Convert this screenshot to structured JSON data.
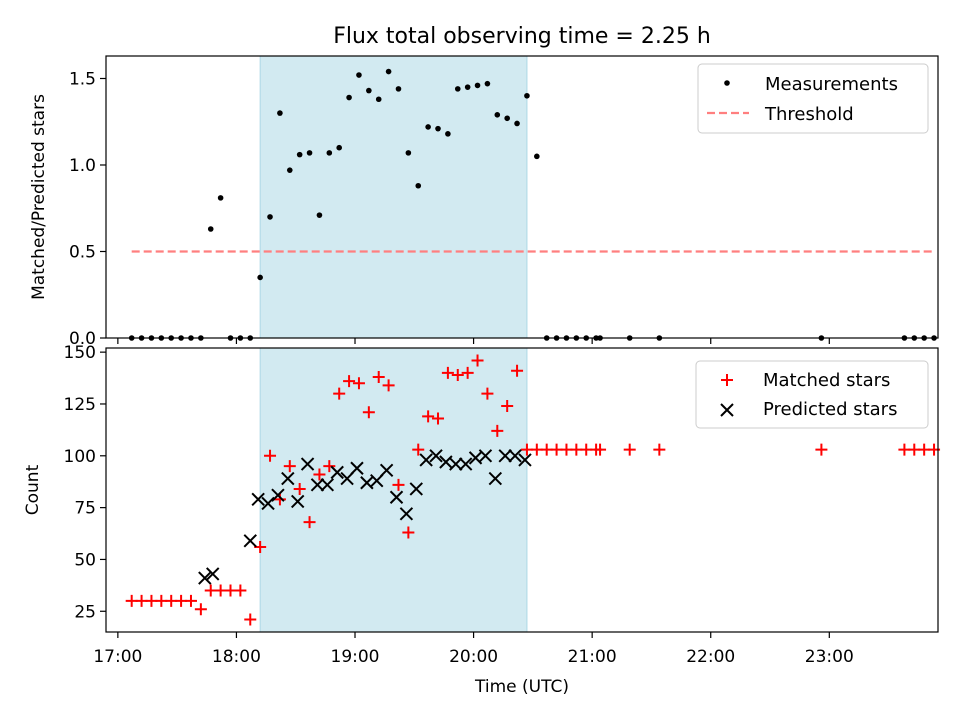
{
  "figure": {
    "title": "Flux total observing time = 2.25 h"
  },
  "chart_data": [
    {
      "type": "scatter",
      "title": "Flux total observing time = 2.25 h",
      "xlabel": "",
      "ylabel": "Matched/Predicted stars",
      "xlim": [
        "16:54",
        "23:55"
      ],
      "ylim": [
        0,
        1.63
      ],
      "yticks": [
        "0.0",
        "0.5",
        "1.0",
        "1.5"
      ],
      "grid": false,
      "legend": "top-right",
      "shaded_interval": [
        "18:12",
        "20:27"
      ],
      "series": [
        {
          "name": "Measurements",
          "marker": "dot",
          "color": "#000000",
          "points": [
            [
              "17:07",
              0
            ],
            [
              "17:12",
              0
            ],
            [
              "17:17",
              0
            ],
            [
              "17:22",
              0
            ],
            [
              "17:27",
              0
            ],
            [
              "17:32",
              0
            ],
            [
              "17:37",
              0
            ],
            [
              "17:42",
              0
            ],
            [
              "17:47",
              0.63
            ],
            [
              "17:52",
              0.81
            ],
            [
              "17:57",
              0
            ],
            [
              "18:02",
              0
            ],
            [
              "18:07",
              0
            ],
            [
              "18:12",
              0.35
            ],
            [
              "18:17",
              0.7
            ],
            [
              "18:22",
              1.3
            ],
            [
              "18:27",
              0.97
            ],
            [
              "18:32",
              1.06
            ],
            [
              "18:37",
              1.07
            ],
            [
              "18:42",
              0.71
            ],
            [
              "18:47",
              1.07
            ],
            [
              "18:52",
              1.1
            ],
            [
              "18:57",
              1.39
            ],
            [
              "19:02",
              1.52
            ],
            [
              "19:07",
              1.43
            ],
            [
              "19:12",
              1.38
            ],
            [
              "19:17",
              1.54
            ],
            [
              "19:22",
              1.44
            ],
            [
              "19:27",
              1.07
            ],
            [
              "19:32",
              0.88
            ],
            [
              "19:37",
              1.22
            ],
            [
              "19:42",
              1.21
            ],
            [
              "19:47",
              1.18
            ],
            [
              "19:52",
              1.44
            ],
            [
              "19:57",
              1.45
            ],
            [
              "20:02",
              1.46
            ],
            [
              "20:07",
              1.47
            ],
            [
              "20:12",
              1.29
            ],
            [
              "20:17",
              1.27
            ],
            [
              "20:22",
              1.24
            ],
            [
              "20:27",
              1.4
            ],
            [
              "20:32",
              1.05
            ],
            [
              "20:37",
              0
            ],
            [
              "20:42",
              0
            ],
            [
              "20:47",
              0
            ],
            [
              "20:52",
              0
            ],
            [
              "20:57",
              0
            ],
            [
              "21:02",
              0
            ],
            [
              "21:04",
              0
            ],
            [
              "21:19",
              0
            ],
            [
              "21:34",
              0
            ],
            [
              "22:56",
              0
            ],
            [
              "23:38",
              0
            ],
            [
              "23:43",
              0
            ],
            [
              "23:48",
              0
            ],
            [
              "23:53",
              0
            ]
          ]
        },
        {
          "name": "Threshold",
          "marker": "dashed-line",
          "color": "#ff7f7f",
          "points": [
            [
              "17:07",
              0.5
            ],
            [
              "23:53",
              0.5
            ]
          ]
        }
      ]
    },
    {
      "type": "scatter",
      "title": "",
      "xlabel": "Time (UTC)",
      "ylabel": "Count",
      "xlim": [
        "16:54",
        "23:55"
      ],
      "ylim": [
        15,
        152
      ],
      "yticks": [
        "25",
        "50",
        "75",
        "100",
        "125",
        "150"
      ],
      "xticks": [
        "17:00",
        "18:00",
        "19:00",
        "20:00",
        "21:00",
        "22:00",
        "23:00"
      ],
      "grid": false,
      "legend": "top-right",
      "shaded_interval": [
        "18:12",
        "20:27"
      ],
      "series": [
        {
          "name": "Matched stars",
          "marker": "plus",
          "color": "#ff0000",
          "points": [
            [
              "17:07",
              30
            ],
            [
              "17:12",
              30
            ],
            [
              "17:17",
              30
            ],
            [
              "17:22",
              30
            ],
            [
              "17:27",
              30
            ],
            [
              "17:32",
              30
            ],
            [
              "17:37",
              30
            ],
            [
              "17:42",
              26
            ],
            [
              "17:47",
              35
            ],
            [
              "17:52",
              35
            ],
            [
              "17:57",
              35
            ],
            [
              "18:02",
              35
            ],
            [
              "18:07",
              21
            ],
            [
              "18:12",
              56
            ],
            [
              "18:17",
              100
            ],
            [
              "18:22",
              79
            ],
            [
              "18:27",
              95
            ],
            [
              "18:32",
              84
            ],
            [
              "18:37",
              68
            ],
            [
              "18:42",
              91
            ],
            [
              "18:47",
              95
            ],
            [
              "18:52",
              130
            ],
            [
              "18:57",
              136
            ],
            [
              "19:02",
              135
            ],
            [
              "19:07",
              121
            ],
            [
              "19:12",
              138
            ],
            [
              "19:17",
              134
            ],
            [
              "19:22",
              86
            ],
            [
              "19:27",
              63
            ],
            [
              "19:32",
              103
            ],
            [
              "19:37",
              119
            ],
            [
              "19:42",
              118
            ],
            [
              "19:47",
              140
            ],
            [
              "19:52",
              139
            ],
            [
              "19:57",
              140
            ],
            [
              "20:02",
              146
            ],
            [
              "20:07",
              130
            ],
            [
              "20:12",
              112
            ],
            [
              "20:17",
              124
            ],
            [
              "20:22",
              141
            ],
            [
              "20:27",
              103
            ],
            [
              "20:32",
              103
            ],
            [
              "20:37",
              103
            ],
            [
              "20:42",
              103
            ],
            [
              "20:47",
              103
            ],
            [
              "20:52",
              103
            ],
            [
              "20:57",
              103
            ],
            [
              "21:02",
              103
            ],
            [
              "21:04",
              103
            ],
            [
              "21:19",
              103
            ],
            [
              "21:34",
              103
            ],
            [
              "22:56",
              103
            ],
            [
              "23:38",
              103
            ],
            [
              "23:43",
              103
            ],
            [
              "23:48",
              103
            ],
            [
              "23:53",
              103
            ]
          ]
        },
        {
          "name": "Predicted stars",
          "marker": "x",
          "color": "#000000",
          "points": [
            [
              "17:44",
              41
            ],
            [
              "17:48",
              43
            ],
            [
              "18:07",
              59
            ],
            [
              "18:11",
              79
            ],
            [
              "18:16",
              77
            ],
            [
              "18:21",
              81
            ],
            [
              "18:26",
              89
            ],
            [
              "18:31",
              78
            ],
            [
              "18:36",
              96
            ],
            [
              "18:41",
              86
            ],
            [
              "18:46",
              86
            ],
            [
              "18:51",
              92
            ],
            [
              "18:56",
              89
            ],
            [
              "19:01",
              94
            ],
            [
              "19:06",
              87
            ],
            [
              "19:11",
              88
            ],
            [
              "19:16",
              93
            ],
            [
              "19:21",
              80
            ],
            [
              "19:26",
              72
            ],
            [
              "19:31",
              84
            ],
            [
              "19:36",
              98
            ],
            [
              "19:41",
              100
            ],
            [
              "19:46",
              97
            ],
            [
              "19:51",
              96
            ],
            [
              "19:56",
              96
            ],
            [
              "20:01",
              99
            ],
            [
              "20:06",
              100
            ],
            [
              "20:11",
              89
            ],
            [
              "20:16",
              100
            ],
            [
              "20:21",
              100
            ],
            [
              "20:26",
              98
            ]
          ]
        }
      ]
    }
  ]
}
